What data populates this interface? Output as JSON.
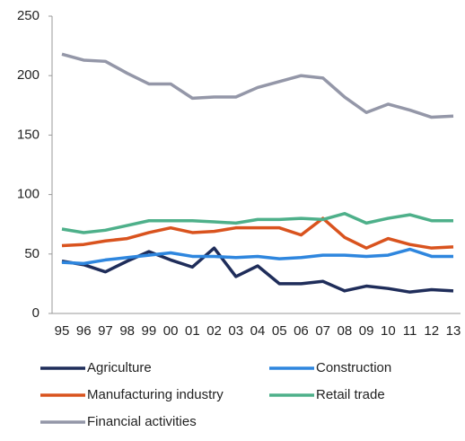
{
  "chart_data": {
    "type": "line",
    "categories": [
      "95",
      "96",
      "97",
      "98",
      "99",
      "00",
      "01",
      "02",
      "03",
      "04",
      "05",
      "06",
      "07",
      "08",
      "09",
      "10",
      "11",
      "12",
      "13"
    ],
    "series": [
      {
        "name": "Agriculture",
        "color": "#1f2d5a",
        "values": [
          44,
          41,
          35,
          44,
          52,
          45,
          39,
          55,
          31,
          40,
          25,
          25,
          27,
          19,
          23,
          21,
          18,
          20,
          19
        ]
      },
      {
        "name": "Construction",
        "color": "#2e86de",
        "values": [
          43,
          42,
          45,
          47,
          49,
          51,
          48,
          48,
          47,
          48,
          46,
          47,
          49,
          49,
          48,
          49,
          54,
          48,
          48
        ]
      },
      {
        "name": "Manufacturing industry",
        "color": "#d9531e",
        "values": [
          57,
          58,
          61,
          63,
          68,
          72,
          68,
          69,
          72,
          72,
          72,
          66,
          80,
          64,
          55,
          63,
          58,
          55,
          56
        ]
      },
      {
        "name": "Retail trade",
        "color": "#4eb08a",
        "values": [
          71,
          68,
          70,
          74,
          78,
          78,
          78,
          77,
          76,
          79,
          79,
          80,
          79,
          84,
          76,
          80,
          83,
          78,
          78
        ]
      },
      {
        "name": "Financial activities",
        "color": "#9497a8",
        "values": [
          218,
          213,
          212,
          202,
          193,
          193,
          181,
          182,
          182,
          190,
          195,
          200,
          198,
          182,
          169,
          176,
          171,
          165,
          166
        ]
      }
    ],
    "ylim": [
      0,
      250
    ],
    "yticks": [
      0,
      50,
      100,
      150,
      200,
      250
    ],
    "grid": false
  }
}
